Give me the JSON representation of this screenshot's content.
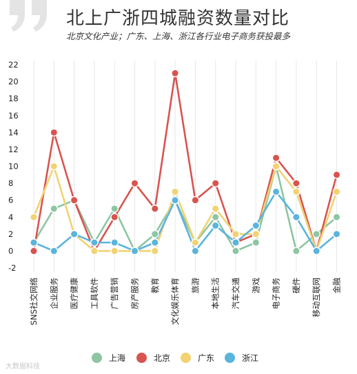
{
  "header": {
    "title": "北上广浙四城融资数量对比",
    "subtitle": "北京文化产业；广东、上海、浙江各行业电子商务获投最多",
    "quote_icon": "double-quote-icon",
    "quote_color": "#e4e4e4"
  },
  "chart_data": {
    "type": "line",
    "title": "北上广浙四城融资数量对比",
    "subtitle": "北京文化产业；广东、上海、浙江各行业电子商务获投最多",
    "xlabel": "",
    "ylabel": "",
    "ylim": [
      -2,
      22
    ],
    "yticks": [
      -2,
      0,
      2,
      4,
      6,
      8,
      10,
      12,
      14,
      16,
      18,
      20,
      22
    ],
    "grid": "vertical",
    "legend_position": "bottom",
    "categories": [
      "SNS社交网络",
      "企业服务",
      "医疗健康",
      "工具软件",
      "广告营销",
      "房产服务",
      "教育",
      "文化娱乐体育",
      "旅游",
      "本地生活",
      "汽车交通",
      "游戏",
      "电子商务",
      "硬件",
      "移动互联网",
      "金融"
    ],
    "series": [
      {
        "name": "上海",
        "color": "#8cc6a2",
        "values": [
          1,
          5,
          6,
          1,
          5,
          0,
          2,
          6,
          1,
          4,
          0,
          1,
          10,
          0,
          2,
          4
        ]
      },
      {
        "name": "北京",
        "color": "#d9534f",
        "values": [
          0,
          14,
          6,
          0,
          4,
          8,
          5,
          21,
          6,
          8,
          1,
          2,
          11,
          8,
          0,
          9
        ]
      },
      {
        "name": "广东",
        "color": "#f2d272",
        "values": [
          4,
          10,
          2,
          0,
          0,
          0,
          0,
          7,
          1,
          5,
          2,
          2,
          10,
          7,
          0,
          7
        ]
      },
      {
        "name": "浙江",
        "color": "#5ab4dc",
        "values": [
          1,
          0,
          2,
          1,
          1,
          0,
          1,
          6,
          0,
          3,
          1,
          3,
          7,
          4,
          0,
          2
        ]
      }
    ]
  },
  "legend": {
    "items": [
      {
        "label": "上海",
        "color": "#8cc6a2"
      },
      {
        "label": "北京",
        "color": "#d9534f"
      },
      {
        "label": "广东",
        "color": "#f2d272"
      },
      {
        "label": "浙江",
        "color": "#5ab4dc"
      }
    ]
  },
  "watermark": "大数据科技"
}
